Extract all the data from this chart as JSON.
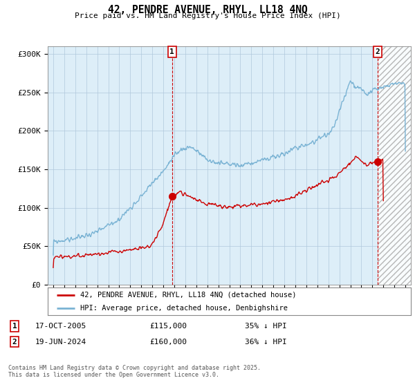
{
  "title": "42, PENDRE AVENUE, RHYL, LL18 4NQ",
  "subtitle": "Price paid vs. HM Land Registry's House Price Index (HPI)",
  "ylim": [
    0,
    310000
  ],
  "yticks": [
    0,
    50000,
    100000,
    150000,
    200000,
    250000,
    300000
  ],
  "ytick_labels": [
    "£0",
    "£50K",
    "£100K",
    "£150K",
    "£200K",
    "£250K",
    "£300K"
  ],
  "xlim_start": 1994.5,
  "xlim_end": 2027.5,
  "hpi_color": "#7ab3d4",
  "price_color": "#cc0000",
  "vline_color": "#cc0000",
  "plot_bg_color": "#ddeef8",
  "point1_x": 2005.8,
  "point1_y": 115000,
  "point2_x": 2024.47,
  "point2_y": 160000,
  "legend_line1": "42, PENDRE AVENUE, RHYL, LL18 4NQ (detached house)",
  "legend_line2": "HPI: Average price, detached house, Denbighshire",
  "annotation1_num": "1",
  "annotation1_date": "17-OCT-2005",
  "annotation1_price": "£115,000",
  "annotation1_hpi": "35% ↓ HPI",
  "annotation2_num": "2",
  "annotation2_date": "19-JUN-2024",
  "annotation2_price": "£160,000",
  "annotation2_hpi": "36% ↓ HPI",
  "footer": "Contains HM Land Registry data © Crown copyright and database right 2025.\nThis data is licensed under the Open Government Licence v3.0.",
  "background_color": "#ffffff",
  "grid_color": "#b0c8dc",
  "hpi_linewidth": 1.0,
  "price_linewidth": 1.0,
  "hatch_start": 2024.47,
  "hatch_end": 2027.5
}
